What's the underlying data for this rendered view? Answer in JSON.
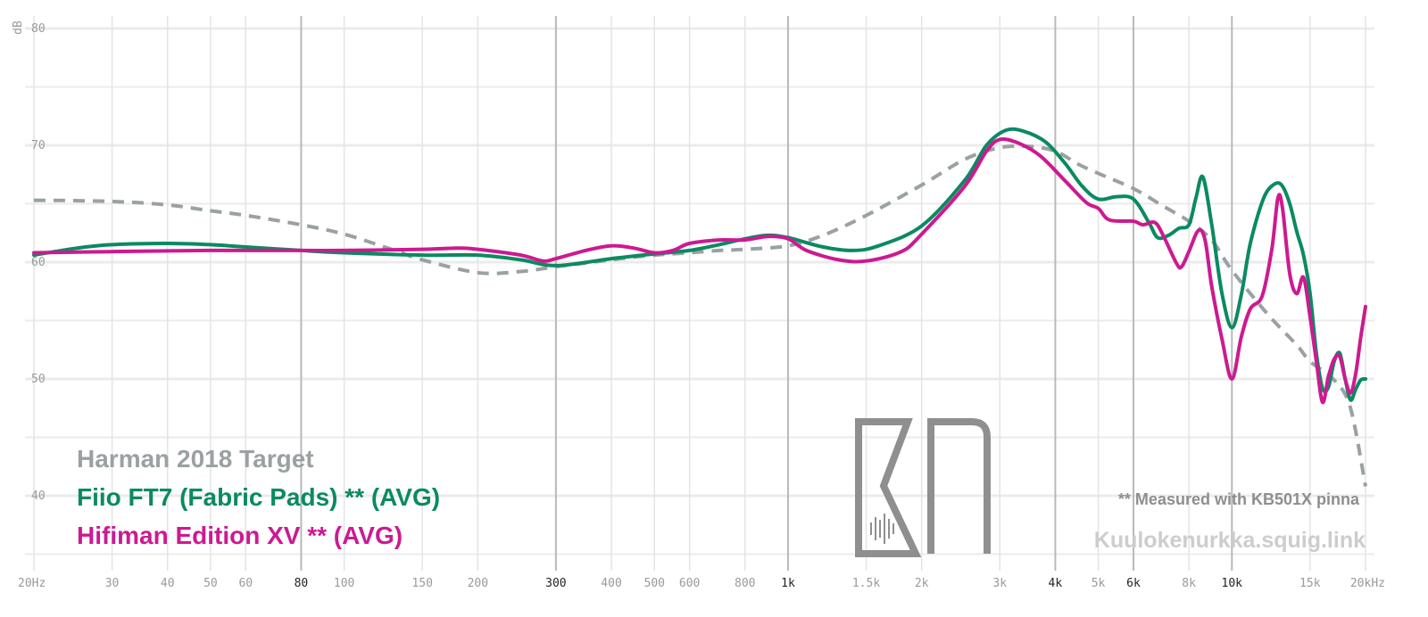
{
  "chart_data": {
    "type": "line",
    "xscale": "log",
    "xlim": [
      20,
      20000
    ],
    "ylim": [
      35,
      80
    ],
    "ylabel": "dB",
    "grid": true,
    "xticks": [
      {
        "v": 20,
        "label": "20Hz"
      },
      {
        "v": 30,
        "label": "30"
      },
      {
        "v": 40,
        "label": "40"
      },
      {
        "v": 50,
        "label": "50"
      },
      {
        "v": 60,
        "label": "60"
      },
      {
        "v": 80,
        "label": "80",
        "major": true
      },
      {
        "v": 100,
        "label": "100"
      },
      {
        "v": 150,
        "label": "150"
      },
      {
        "v": 200,
        "label": "200"
      },
      {
        "v": 300,
        "label": "300",
        "major": true
      },
      {
        "v": 400,
        "label": "400"
      },
      {
        "v": 500,
        "label": "500"
      },
      {
        "v": 600,
        "label": "600"
      },
      {
        "v": 800,
        "label": "800"
      },
      {
        "v": 1000,
        "label": "1k",
        "major": true
      },
      {
        "v": 1500,
        "label": "1.5k"
      },
      {
        "v": 2000,
        "label": "2k"
      },
      {
        "v": 3000,
        "label": "3k"
      },
      {
        "v": 4000,
        "label": "4k",
        "major": true
      },
      {
        "v": 5000,
        "label": "5k"
      },
      {
        "v": 6000,
        "label": "6k",
        "major": true
      },
      {
        "v": 8000,
        "label": "8k"
      },
      {
        "v": 10000,
        "label": "10k",
        "major": true
      },
      {
        "v": 15000,
        "label": "15k"
      },
      {
        "v": 20000,
        "label": "20kHz"
      }
    ],
    "yticks": [
      {
        "v": 80,
        "label": "80"
      },
      {
        "v": 70,
        "label": "70"
      },
      {
        "v": 60,
        "label": "60"
      },
      {
        "v": 50,
        "label": "50"
      },
      {
        "v": 40,
        "label": "40"
      }
    ],
    "series": [
      {
        "name": "Harman 2018 Target",
        "color": "#9aa1a3",
        "dash": true,
        "points": [
          [
            20,
            65.3
          ],
          [
            30,
            65.2
          ],
          [
            40,
            64.9
          ],
          [
            50,
            64.4
          ],
          [
            60,
            64.0
          ],
          [
            80,
            63.2
          ],
          [
            100,
            62.4
          ],
          [
            130,
            61.0
          ],
          [
            150,
            60.2
          ],
          [
            200,
            59.1
          ],
          [
            250,
            59.2
          ],
          [
            300,
            59.6
          ],
          [
            400,
            60.2
          ],
          [
            500,
            60.6
          ],
          [
            600,
            60.8
          ],
          [
            700,
            61.0
          ],
          [
            800,
            61.1
          ],
          [
            1000,
            61.4
          ],
          [
            1200,
            62.3
          ],
          [
            1500,
            64.0
          ],
          [
            2000,
            66.6
          ],
          [
            2500,
            68.8
          ],
          [
            3000,
            69.8
          ],
          [
            3500,
            69.9
          ],
          [
            4000,
            69.5
          ],
          [
            4500,
            68.4
          ],
          [
            5000,
            67.6
          ],
          [
            6000,
            66.3
          ],
          [
            7000,
            64.8
          ],
          [
            8000,
            63.5
          ],
          [
            9000,
            61.9
          ],
          [
            10000,
            59.3
          ],
          [
            12000,
            55.6
          ],
          [
            14000,
            52.9
          ],
          [
            15000,
            51.5
          ],
          [
            17000,
            49.9
          ],
          [
            18500,
            47.5
          ],
          [
            20000,
            40.8
          ]
        ]
      },
      {
        "name": "Fiio FT7 (Fabric Pads) ** (AVG)",
        "color": "#0b8a62",
        "dash": false,
        "points": [
          [
            20,
            60.6
          ],
          [
            25,
            61.2
          ],
          [
            30,
            61.5
          ],
          [
            40,
            61.6
          ],
          [
            50,
            61.5
          ],
          [
            60,
            61.3
          ],
          [
            80,
            61.0
          ],
          [
            100,
            60.8
          ],
          [
            150,
            60.6
          ],
          [
            200,
            60.6
          ],
          [
            250,
            60.2
          ],
          [
            300,
            59.7
          ],
          [
            400,
            60.3
          ],
          [
            500,
            60.7
          ],
          [
            600,
            61.0
          ],
          [
            700,
            61.5
          ],
          [
            800,
            62.0
          ],
          [
            900,
            62.3
          ],
          [
            1000,
            62.1
          ],
          [
            1200,
            61.3
          ],
          [
            1400,
            61.0
          ],
          [
            1600,
            61.4
          ],
          [
            2000,
            63.1
          ],
          [
            2500,
            67.0
          ],
          [
            2800,
            70.0
          ],
          [
            3100,
            71.3
          ],
          [
            3400,
            71.2
          ],
          [
            3800,
            70.3
          ],
          [
            4200,
            68.5
          ],
          [
            4600,
            66.5
          ],
          [
            5000,
            65.4
          ],
          [
            5500,
            65.6
          ],
          [
            6000,
            65.4
          ],
          [
            6500,
            63.4
          ],
          [
            6800,
            62.1
          ],
          [
            7200,
            62.3
          ],
          [
            7600,
            62.9
          ],
          [
            8000,
            63.2
          ],
          [
            8300,
            65.5
          ],
          [
            8600,
            67.3
          ],
          [
            9000,
            63.3
          ],
          [
            9500,
            57.3
          ],
          [
            10000,
            54.4
          ],
          [
            10500,
            57.2
          ],
          [
            11000,
            61.6
          ],
          [
            11800,
            65.5
          ],
          [
            12500,
            66.7
          ],
          [
            13000,
            66.5
          ],
          [
            13500,
            65.0
          ],
          [
            14000,
            62.6
          ],
          [
            14500,
            60.6
          ],
          [
            15000,
            57.3
          ],
          [
            15500,
            52.2
          ],
          [
            16000,
            49.2
          ],
          [
            16500,
            49.3
          ],
          [
            17000,
            51.5
          ],
          [
            17500,
            52.2
          ],
          [
            18000,
            50.0
          ],
          [
            18500,
            48.2
          ],
          [
            19000,
            49.1
          ],
          [
            19500,
            49.9
          ],
          [
            20000,
            50.0
          ]
        ]
      },
      {
        "name": "Hifiman Edition XV ** (AVG)",
        "color": "#cc1a91",
        "dash": false,
        "points": [
          [
            20,
            60.8
          ],
          [
            30,
            60.9
          ],
          [
            50,
            61.0
          ],
          [
            80,
            61.0
          ],
          [
            100,
            61.0
          ],
          [
            150,
            61.1
          ],
          [
            180,
            61.2
          ],
          [
            200,
            61.1
          ],
          [
            250,
            60.6
          ],
          [
            280,
            60.1
          ],
          [
            300,
            60.3
          ],
          [
            350,
            61.0
          ],
          [
            400,
            61.4
          ],
          [
            450,
            61.2
          ],
          [
            500,
            60.8
          ],
          [
            550,
            61.0
          ],
          [
            600,
            61.6
          ],
          [
            700,
            61.9
          ],
          [
            800,
            61.9
          ],
          [
            900,
            62.2
          ],
          [
            1000,
            62.0
          ],
          [
            1100,
            61.0
          ],
          [
            1300,
            60.2
          ],
          [
            1500,
            60.1
          ],
          [
            1800,
            60.9
          ],
          [
            2000,
            62.4
          ],
          [
            2500,
            66.5
          ],
          [
            2800,
            69.5
          ],
          [
            3000,
            70.5
          ],
          [
            3300,
            70.2
          ],
          [
            3700,
            69.1
          ],
          [
            4200,
            67.0
          ],
          [
            4700,
            65.1
          ],
          [
            5000,
            64.6
          ],
          [
            5300,
            63.6
          ],
          [
            6000,
            63.5
          ],
          [
            6300,
            63.2
          ],
          [
            6700,
            63.4
          ],
          [
            7000,
            62.3
          ],
          [
            7500,
            59.9
          ],
          [
            7700,
            59.6
          ],
          [
            8000,
            60.9
          ],
          [
            8400,
            62.7
          ],
          [
            8700,
            61.9
          ],
          [
            9000,
            58.0
          ],
          [
            9500,
            53.4
          ],
          [
            10000,
            50.0
          ],
          [
            10500,
            53.6
          ],
          [
            11000,
            56.0
          ],
          [
            11700,
            57.1
          ],
          [
            12300,
            61.1
          ],
          [
            12700,
            65.5
          ],
          [
            13000,
            64.6
          ],
          [
            13500,
            59.0
          ],
          [
            14000,
            57.3
          ],
          [
            14500,
            58.7
          ],
          [
            15000,
            55.3
          ],
          [
            15500,
            51.5
          ],
          [
            16000,
            48.0
          ],
          [
            16500,
            50.2
          ],
          [
            17000,
            51.7
          ],
          [
            17500,
            51.9
          ],
          [
            18000,
            50.0
          ],
          [
            18500,
            48.8
          ],
          [
            19000,
            50.4
          ],
          [
            19500,
            53.5
          ],
          [
            20000,
            56.2
          ]
        ]
      }
    ]
  },
  "legend": {
    "target": "Harman 2018 Target",
    "series1": "Fiio FT7 (Fabric Pads) ** (AVG)",
    "series2": "Hifiman Edition XV ** (AVG)"
  },
  "note": "** Measured with KB501X pinna",
  "site": "Kuulokenurkka.squig.link",
  "colors": {
    "target": "#9aa1a3",
    "series1": "#0b8a62",
    "series2": "#cc1a91",
    "grid": "#ebebeb",
    "major_grid": "#b9b9b9"
  }
}
